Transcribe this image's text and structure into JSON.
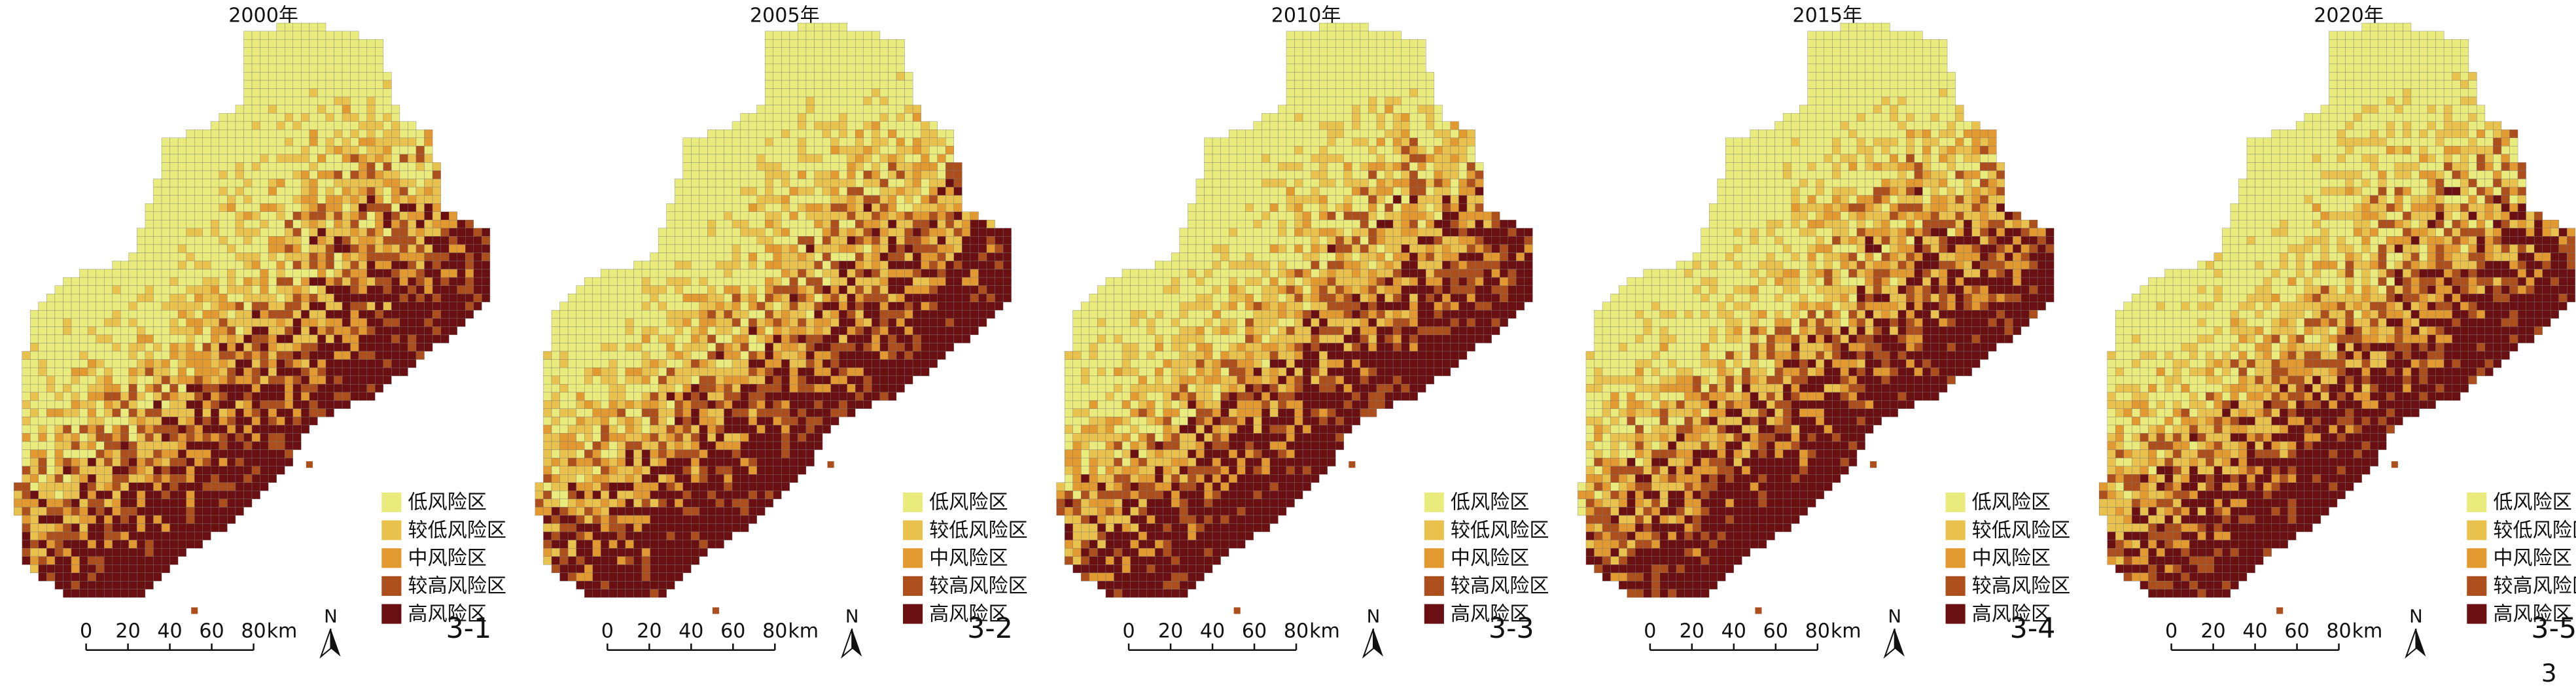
{
  "panels": [
    {
      "title": "2000年",
      "label": "3-1"
    },
    {
      "title": "2005年",
      "label": "3-2"
    },
    {
      "title": "2010年",
      "label": "3-3"
    },
    {
      "title": "2015年",
      "label": "3-4"
    },
    {
      "title": "2020年",
      "label": "3-5"
    }
  ],
  "legend": [
    {
      "label": "低风险区",
      "color": "#e9ec7c"
    },
    {
      "label": "较低风险区",
      "color": "#e8c24c"
    },
    {
      "label": "中风险区",
      "color": "#e29a30"
    },
    {
      "label": "较高风险区",
      "color": "#ad4f1c"
    },
    {
      "label": "高风险区",
      "color": "#6a1012"
    }
  ],
  "scale_bar": {
    "ticks": [
      0,
      20,
      40,
      60,
      80
    ],
    "unit": "km"
  },
  "north": "N",
  "footer": "3"
}
